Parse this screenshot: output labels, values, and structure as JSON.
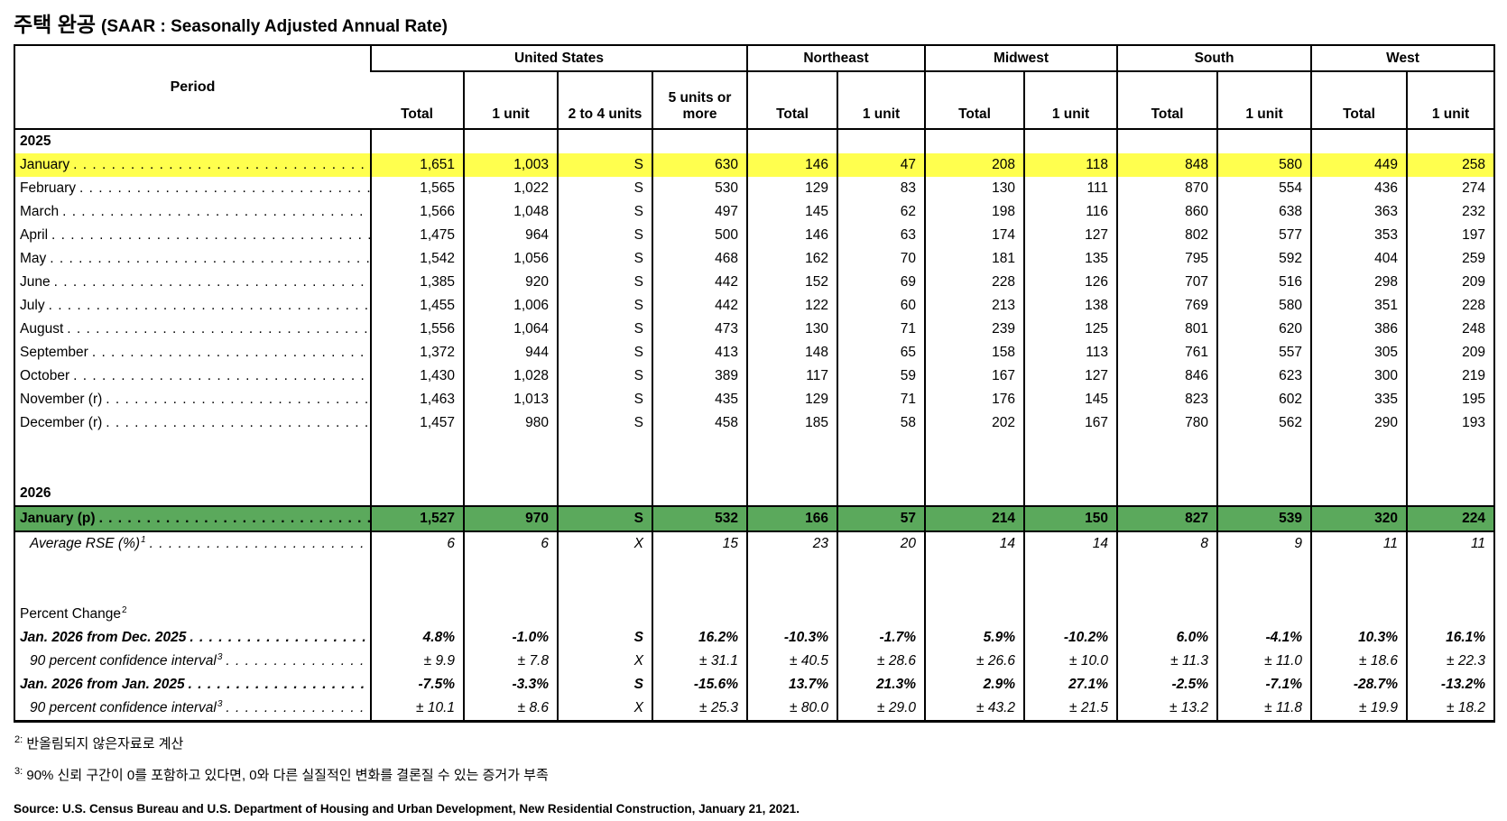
{
  "title": {
    "korean": "주택 완공",
    "english": "(SAAR : Seasonally Adjusted Annual Rate)"
  },
  "colors": {
    "yellow_highlight": "#FFFF4E",
    "green_highlight": "#5BA95C"
  },
  "table": {
    "period_header": "Period",
    "groups": [
      {
        "label": "United States",
        "cols": [
          "Total",
          "1 unit",
          "2 to 4 units",
          "5 units or more"
        ]
      },
      {
        "label": "Northeast",
        "cols": [
          "Total",
          "1 unit"
        ]
      },
      {
        "label": "Midwest",
        "cols": [
          "Total",
          "1 unit"
        ]
      },
      {
        "label": "South",
        "cols": [
          "Total",
          "1 unit"
        ]
      },
      {
        "label": "West",
        "cols": [
          "Total",
          "1 unit"
        ]
      }
    ],
    "rows": [
      {
        "type": "year",
        "label": "2025",
        "sup": "",
        "leader": false,
        "values": []
      },
      {
        "type": "yellow",
        "label": "January",
        "sup": "",
        "leader": true,
        "values": [
          "1,651",
          "1,003",
          "S",
          "630",
          "146",
          "47",
          "208",
          "118",
          "848",
          "580",
          "449",
          "258"
        ]
      },
      {
        "type": "month",
        "label": "February",
        "sup": "",
        "leader": true,
        "values": [
          "1,565",
          "1,022",
          "S",
          "530",
          "129",
          "83",
          "130",
          "111",
          "870",
          "554",
          "436",
          "274"
        ]
      },
      {
        "type": "month",
        "label": "March",
        "sup": "",
        "leader": true,
        "values": [
          "1,566",
          "1,048",
          "S",
          "497",
          "145",
          "62",
          "198",
          "116",
          "860",
          "638",
          "363",
          "232"
        ]
      },
      {
        "type": "month",
        "label": "April",
        "sup": "",
        "leader": true,
        "values": [
          "1,475",
          "964",
          "S",
          "500",
          "146",
          "63",
          "174",
          "127",
          "802",
          "577",
          "353",
          "197"
        ]
      },
      {
        "type": "month",
        "label": "May",
        "sup": "",
        "leader": true,
        "values": [
          "1,542",
          "1,056",
          "S",
          "468",
          "162",
          "70",
          "181",
          "135",
          "795",
          "592",
          "404",
          "259"
        ]
      },
      {
        "type": "month",
        "label": "June",
        "sup": "",
        "leader": true,
        "values": [
          "1,385",
          "920",
          "S",
          "442",
          "152",
          "69",
          "228",
          "126",
          "707",
          "516",
          "298",
          "209"
        ]
      },
      {
        "type": "month",
        "label": "July",
        "sup": "",
        "leader": true,
        "values": [
          "1,455",
          "1,006",
          "S",
          "442",
          "122",
          "60",
          "213",
          "138",
          "769",
          "580",
          "351",
          "228"
        ]
      },
      {
        "type": "month",
        "label": "August",
        "sup": "",
        "leader": true,
        "values": [
          "1,556",
          "1,064",
          "S",
          "473",
          "130",
          "71",
          "239",
          "125",
          "801",
          "620",
          "386",
          "248"
        ]
      },
      {
        "type": "month",
        "label": "September",
        "sup": "",
        "leader": true,
        "values": [
          "1,372",
          "944",
          "S",
          "413",
          "148",
          "65",
          "158",
          "113",
          "761",
          "557",
          "305",
          "209"
        ]
      },
      {
        "type": "month",
        "label": "October",
        "sup": "",
        "leader": true,
        "values": [
          "1,430",
          "1,028",
          "S",
          "389",
          "117",
          "59",
          "167",
          "127",
          "846",
          "623",
          "300",
          "219"
        ]
      },
      {
        "type": "month",
        "label": "November (r)",
        "sup": "",
        "leader": true,
        "values": [
          "1,463",
          "1,013",
          "S",
          "435",
          "129",
          "71",
          "176",
          "145",
          "823",
          "602",
          "335",
          "195"
        ]
      },
      {
        "type": "month",
        "label": "December (r)",
        "sup": "",
        "leader": true,
        "values": [
          "1,457",
          "980",
          "S",
          "458",
          "185",
          "58",
          "202",
          "167",
          "780",
          "562",
          "290",
          "193"
        ]
      },
      {
        "type": "blank",
        "label": "",
        "sup": "",
        "leader": false,
        "values": []
      },
      {
        "type": "year",
        "label": "2026",
        "sup": "",
        "leader": false,
        "values": []
      },
      {
        "type": "green",
        "label": "January (p)",
        "sup": "",
        "leader": true,
        "values": [
          "1,527",
          "970",
          "S",
          "532",
          "166",
          "57",
          "214",
          "150",
          "827",
          "539",
          "320",
          "224"
        ]
      },
      {
        "type": "rse",
        "label": "Average RSE (%)",
        "sup": "1",
        "leader": true,
        "values": [
          "6",
          "6",
          "X",
          "15",
          "23",
          "20",
          "14",
          "14",
          "8",
          "9",
          "11",
          "11"
        ]
      },
      {
        "type": "blank",
        "label": "",
        "sup": "",
        "leader": false,
        "values": []
      },
      {
        "type": "label",
        "label": "Percent Change",
        "sup": "2",
        "leader": false,
        "values": []
      },
      {
        "type": "change",
        "label": "Jan. 2026 from Dec. 2025",
        "sup": "",
        "leader": true,
        "values": [
          "4.8%",
          "-1.0%",
          "S",
          "16.2%",
          "-10.3%",
          "-1.7%",
          "5.9%",
          "-10.2%",
          "6.0%",
          "-4.1%",
          "10.3%",
          "16.1%"
        ]
      },
      {
        "type": "confidence",
        "label": "90 percent confidence interval",
        "sup": "3",
        "leader": true,
        "values": [
          "± 9.9",
          "± 7.8",
          "X",
          "± 31.1",
          "± 40.5",
          "± 28.6",
          "± 26.6",
          "± 10.0",
          "± 11.3",
          "± 11.0",
          "± 18.6",
          "± 22.3"
        ]
      },
      {
        "type": "change",
        "label": "Jan. 2026 from Jan. 2025",
        "sup": "",
        "leader": true,
        "values": [
          "-7.5%",
          "-3.3%",
          "S",
          "-15.6%",
          "13.7%",
          "21.3%",
          "2.9%",
          "27.1%",
          "-2.5%",
          "-7.1%",
          "-28.7%",
          "-13.2%"
        ]
      },
      {
        "type": "confidence",
        "label": "90 percent confidence interval",
        "sup": "3",
        "leader": true,
        "values": [
          "± 10.1",
          "± 8.6",
          "X",
          "± 25.3",
          "± 80.0",
          "± 29.0",
          "± 43.2",
          "± 21.5",
          "± 13.2",
          "± 11.8",
          "± 19.9",
          "± 18.2"
        ]
      }
    ]
  },
  "footnotes": [
    {
      "marker": "2:",
      "text": "반올림되지 않은자료로 계산"
    },
    {
      "marker": "3:",
      "text": "90% 신뢰 구간이 0를 포함하고 있다면, 0와 다른 실질적인 변화를 결론질 수 있는 증거가 부족"
    }
  ],
  "source": "Source: U.S. Census Bureau and U.S. Department of Housing and Urban Development, New Residential Construction, January 21, 2021."
}
